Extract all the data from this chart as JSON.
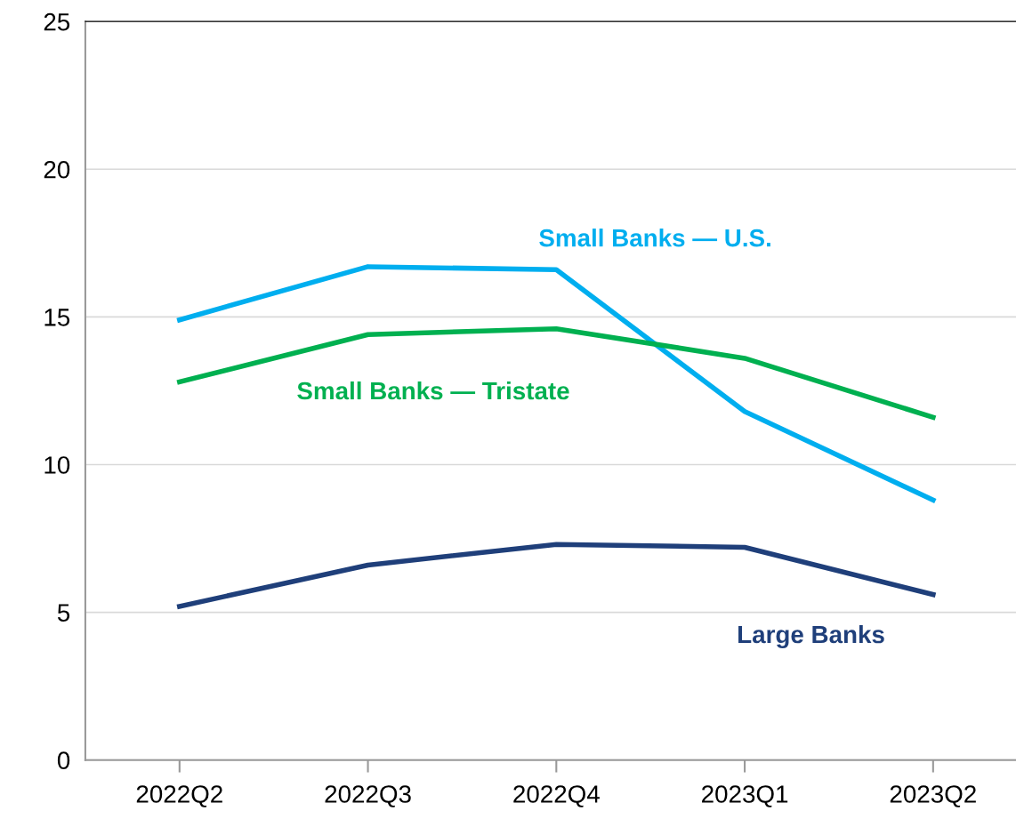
{
  "chart_data": {
    "type": "line",
    "categories": [
      "2022Q2",
      "2022Q3",
      "2022Q4",
      "2023Q1",
      "2023Q2"
    ],
    "series": [
      {
        "name": "Small Banks — U.S.",
        "color": "#00aeef",
        "values": [
          14.9,
          16.7,
          16.6,
          11.8,
          8.8
        ]
      },
      {
        "name": "Small Banks — Tristate",
        "color": "#00b050",
        "values": [
          12.8,
          14.4,
          14.6,
          13.6,
          11.6
        ]
      },
      {
        "name": "Large Banks",
        "color": "#1f3f7a",
        "values": [
          5.2,
          6.6,
          7.3,
          7.2,
          5.6
        ]
      }
    ],
    "ylim": [
      0,
      25
    ],
    "yticks": [
      0,
      5,
      10,
      15,
      20,
      25
    ],
    "grid": "y",
    "legend": false,
    "marker": "none",
    "line_style": "solid"
  }
}
